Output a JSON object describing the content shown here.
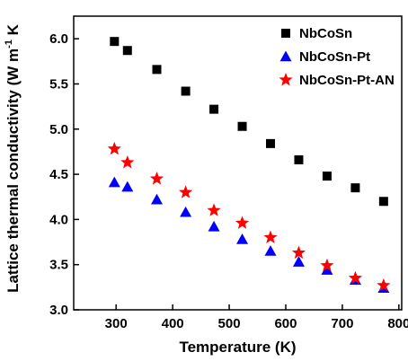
{
  "chart_data": {
    "type": "scatter",
    "title": "",
    "xlabel": "Temperature (K)",
    "ylabel_parts": [
      "Lattice thermal conductivity (W m",
      "-1",
      " K"
    ],
    "xlim": [
      225,
      805
    ],
    "ylim": [
      3.0,
      6.25
    ],
    "xticks": [
      300,
      400,
      500,
      600,
      700,
      800
    ],
    "yticks": [
      3.0,
      3.5,
      4.0,
      4.5,
      5.0,
      5.5,
      6.0
    ],
    "grid": false,
    "legend_position": "top-right",
    "series": [
      {
        "name": "NbCoSn",
        "marker": "square",
        "color": "#000000",
        "x": [
          297,
          320,
          372,
          423,
          473,
          523,
          573,
          623,
          673,
          723,
          773
        ],
        "y": [
          5.97,
          5.87,
          5.66,
          5.42,
          5.22,
          5.03,
          4.84,
          4.66,
          4.48,
          4.35,
          4.2
        ]
      },
      {
        "name": "NbCoSn-Pt",
        "marker": "triangle",
        "color": "#0000ff",
        "x": [
          297,
          320,
          372,
          423,
          473,
          523,
          573,
          623,
          673,
          723,
          773
        ],
        "y": [
          4.41,
          4.36,
          4.22,
          4.08,
          3.92,
          3.78,
          3.65,
          3.53,
          3.44,
          3.33,
          3.24
        ]
      },
      {
        "name": "NbCoSn-Pt-AN",
        "marker": "star",
        "color": "#ff0000",
        "x": [
          297,
          320,
          372,
          423,
          473,
          523,
          573,
          623,
          673,
          723,
          773
        ],
        "y": [
          4.78,
          4.63,
          4.45,
          4.3,
          4.1,
          3.96,
          3.8,
          3.63,
          3.49,
          3.35,
          3.27
        ]
      }
    ]
  }
}
